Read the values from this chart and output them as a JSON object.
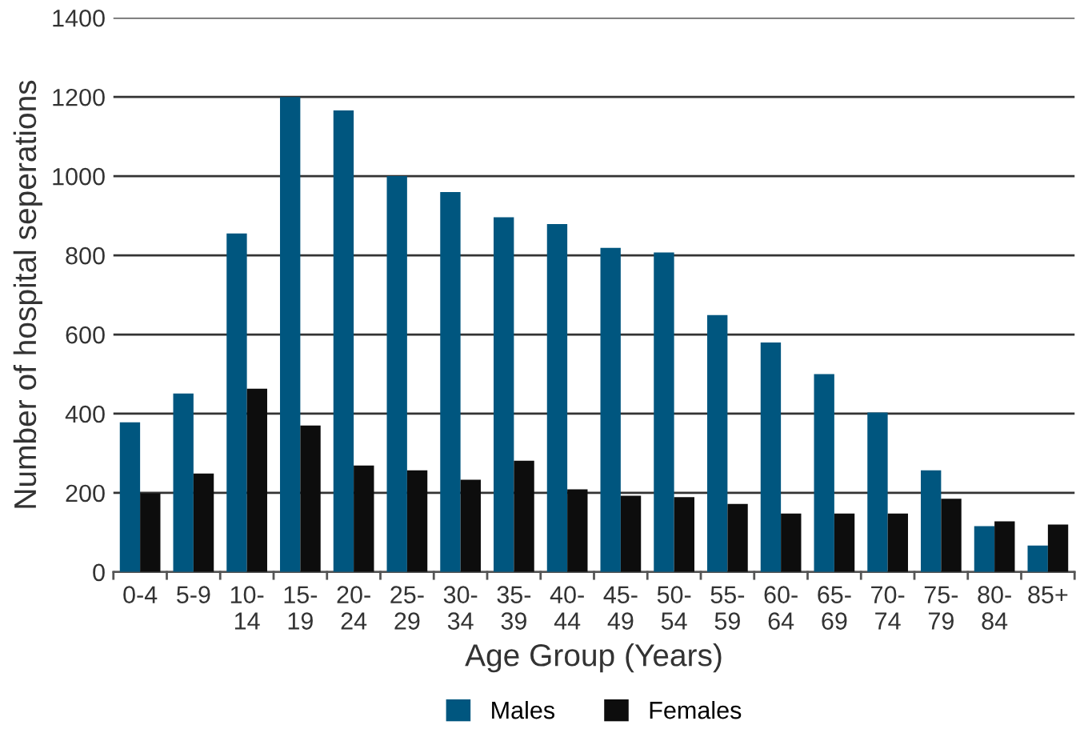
{
  "chart_data": {
    "type": "bar",
    "xlabel": "Age Group (Years)",
    "ylabel": "Number of hospital seperations",
    "categories": [
      "0-4",
      "5-9",
      "10-\n14",
      "15-\n19",
      "20-\n24",
      "25-\n29",
      "30-\n34",
      "35-\n39",
      "40-\n44",
      "45-\n49",
      "50-\n54",
      "55-\n59",
      "60-\n64",
      "65-\n69",
      "70-\n74",
      "75-\n79",
      "80-\n84",
      "85+"
    ],
    "series": [
      {
        "name": "Males",
        "color": "#00567f",
        "values": [
          378,
          451,
          855,
          1200,
          1166,
          1000,
          960,
          896,
          879,
          819,
          807,
          649,
          580,
          500,
          403,
          257,
          116,
          67
        ]
      },
      {
        "name": "Females",
        "color": "#0d0d0d",
        "values": [
          199,
          249,
          463,
          370,
          269,
          257,
          233,
          281,
          209,
          193,
          189,
          172,
          148,
          148,
          148,
          185,
          128,
          120
        ]
      }
    ],
    "ylim": [
      0,
      1400
    ],
    "yticks": [
      0,
      200,
      400,
      600,
      800,
      1000,
      1200,
      1400
    ],
    "grid": "y",
    "legend": "bottom"
  }
}
